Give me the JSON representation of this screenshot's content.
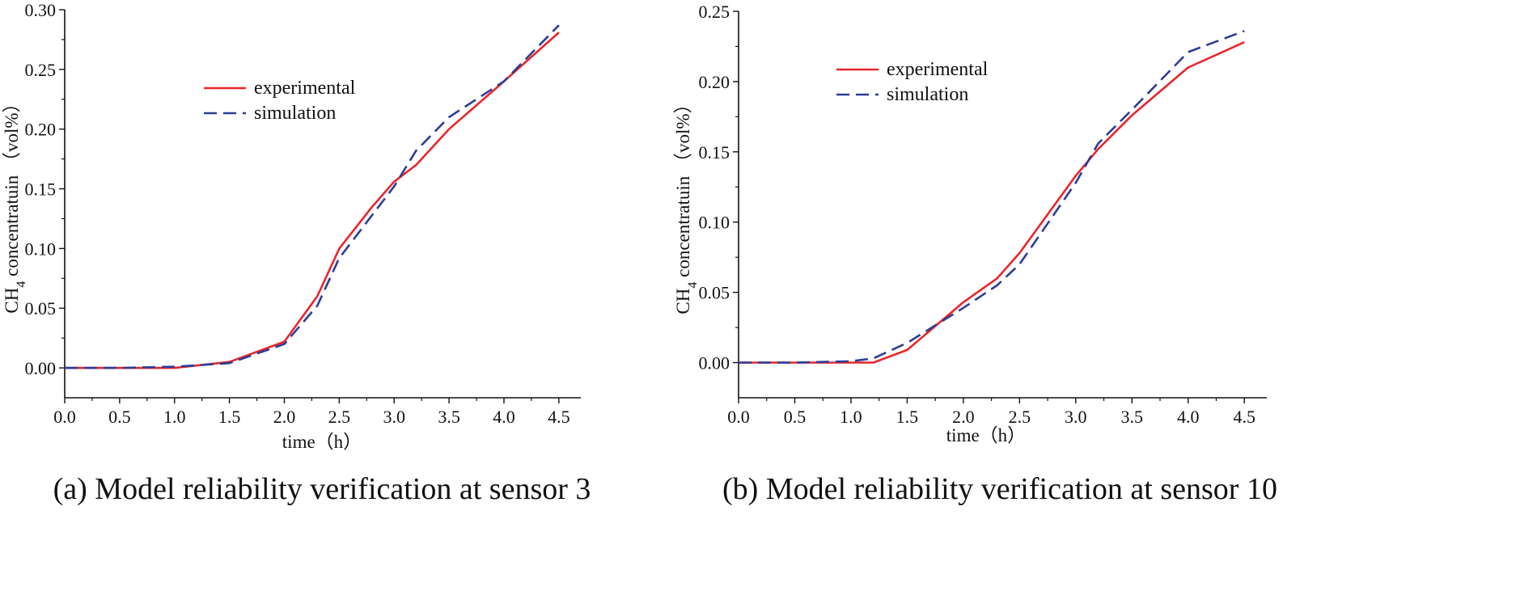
{
  "chart_data": [
    {
      "type": "line",
      "caption": "(a) Model reliability verification at sensor 3",
      "xlabel": "time（h）",
      "ylabel_prefix": "CH",
      "ylabel_sub": "4",
      "ylabel_suffix": " concentratuin （vol%）",
      "xlim": [
        0,
        4.7
      ],
      "ylim": [
        -0.025,
        0.3
      ],
      "xticks": [
        "0.0",
        "0.5",
        "1.0",
        "1.5",
        "2.0",
        "2.5",
        "3.0",
        "3.5",
        "4.0",
        "4.5"
      ],
      "yticks": [
        "0.00",
        "0.05",
        "0.10",
        "0.15",
        "0.20",
        "0.25",
        "0.30"
      ],
      "legend_position": "upper-left-center",
      "series": [
        {
          "name": "experimental",
          "color": "#e8262b",
          "style": "solid",
          "x": [
            0,
            0.5,
            1.0,
            1.5,
            2.0,
            2.3,
            2.5,
            2.8,
            3.0,
            3.2,
            3.5,
            4.0,
            4.5
          ],
          "y": [
            0,
            0,
            0,
            0.005,
            0.022,
            0.06,
            0.1,
            0.135,
            0.156,
            0.17,
            0.2,
            0.24,
            0.281
          ]
        },
        {
          "name": "simulation",
          "color": "#2e3d96",
          "style": "dashed",
          "x": [
            0,
            0.5,
            1.0,
            1.5,
            2.0,
            2.3,
            2.5,
            2.8,
            3.0,
            3.2,
            3.5,
            4.0,
            4.5
          ],
          "y": [
            0,
            0,
            0.001,
            0.004,
            0.02,
            0.052,
            0.092,
            0.128,
            0.152,
            0.182,
            0.21,
            0.24,
            0.287
          ]
        }
      ]
    },
    {
      "type": "line",
      "caption": "(b) Model reliability verification at sensor 10",
      "xlabel": "time（h）",
      "ylabel_prefix": "CH",
      "ylabel_sub": "4",
      "ylabel_suffix": " concentratuin （vol%）",
      "xlim": [
        0,
        4.7
      ],
      "ylim": [
        -0.025,
        0.25
      ],
      "xticks": [
        "0.0",
        "0.5",
        "1.0",
        "1.5",
        "2.0",
        "2.5",
        "3.0",
        "3.5",
        "4.0",
        "4.5"
      ],
      "yticks": [
        "0.00",
        "0.05",
        "0.10",
        "0.15",
        "0.20",
        "0.25"
      ],
      "legend_position": "upper-left-center",
      "series": [
        {
          "name": "experimental",
          "color": "#e8262b",
          "style": "solid",
          "x": [
            0,
            0.5,
            1.0,
            1.2,
            1.5,
            2.0,
            2.3,
            2.5,
            3.0,
            3.2,
            3.5,
            4.0,
            4.5
          ],
          "y": [
            0,
            0,
            0,
            0,
            0.009,
            0.043,
            0.06,
            0.078,
            0.133,
            0.152,
            0.176,
            0.21,
            0.228
          ]
        },
        {
          "name": "simulation",
          "color": "#2e3d96",
          "style": "dashed",
          "x": [
            0,
            0.5,
            1.0,
            1.2,
            1.5,
            2.0,
            2.3,
            2.5,
            3.0,
            3.2,
            3.5,
            4.0,
            4.5
          ],
          "y": [
            0,
            0,
            0.001,
            0.003,
            0.014,
            0.039,
            0.055,
            0.07,
            0.128,
            0.156,
            0.18,
            0.221,
            0.236
          ]
        }
      ]
    }
  ]
}
